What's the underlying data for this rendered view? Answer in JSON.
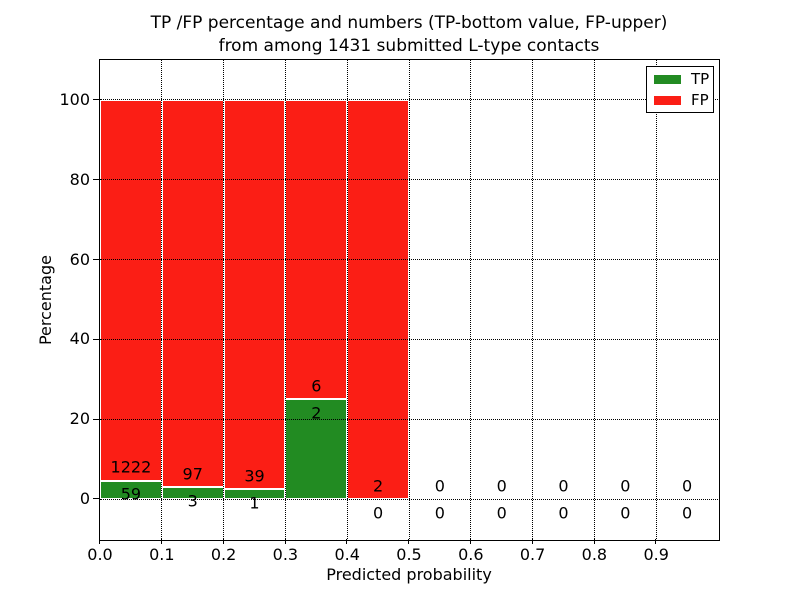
{
  "title": {
    "line1": "TP /FP percentage and numbers (TP-bottom value, FP-upper)",
    "line2": "from among 1431 submitted L-type contacts"
  },
  "chart_data": {
    "type": "bar",
    "stacked": true,
    "title": "TP /FP percentage and numbers (TP-bottom value, FP-upper)\nfrom among 1431 submitted L-type contacts",
    "xlabel": "Predicted probability",
    "ylabel": "Percentage",
    "xlim": [
      0.0,
      1.0
    ],
    "ylim": [
      -10,
      110
    ],
    "grid": true,
    "xticks": [
      "0.0",
      "0.1",
      "0.2",
      "0.3",
      "0.4",
      "0.5",
      "0.6",
      "0.7",
      "0.8",
      "0.9"
    ],
    "yticks": [
      "0",
      "20",
      "40",
      "60",
      "80",
      "100"
    ],
    "bin_width": 0.1,
    "bins": [
      {
        "range": "0.0-0.1",
        "tp": 59,
        "fp": 1222,
        "tp_percent": 4.61,
        "fp_percent": 95.39
      },
      {
        "range": "0.1-0.2",
        "tp": 3,
        "fp": 97,
        "tp_percent": 3.0,
        "fp_percent": 97.0
      },
      {
        "range": "0.2-0.3",
        "tp": 1,
        "fp": 39,
        "tp_percent": 2.5,
        "fp_percent": 97.5
      },
      {
        "range": "0.3-0.4",
        "tp": 2,
        "fp": 6,
        "tp_percent": 25.0,
        "fp_percent": 75.0
      },
      {
        "range": "0.4-0.5",
        "tp": 0,
        "fp": 2,
        "tp_percent": 0.0,
        "fp_percent": 100.0
      },
      {
        "range": "0.5-0.6",
        "tp": 0,
        "fp": 0,
        "tp_percent": 0.0,
        "fp_percent": 0.0
      },
      {
        "range": "0.6-0.7",
        "tp": 0,
        "fp": 0,
        "tp_percent": 0.0,
        "fp_percent": 0.0
      },
      {
        "range": "0.7-0.8",
        "tp": 0,
        "fp": 0,
        "tp_percent": 0.0,
        "fp_percent": 0.0
      },
      {
        "range": "0.8-0.9",
        "tp": 0,
        "fp": 0,
        "tp_percent": 0.0,
        "fp_percent": 0.0
      },
      {
        "range": "0.9-1.0",
        "tp": 0,
        "fp": 0,
        "tp_percent": 0.0,
        "fp_percent": 0.0
      }
    ],
    "total_contacts": 1431,
    "legend": {
      "position": "upper right",
      "items": [
        {
          "label": "TP",
          "color": "#228B22"
        },
        {
          "label": "FP",
          "color": "#FB1E15"
        }
      ]
    },
    "colors": {
      "tp": "#228B22",
      "fp": "#FB1E15",
      "bar_edge": "#FFFFFF",
      "grid": "#000000"
    }
  }
}
